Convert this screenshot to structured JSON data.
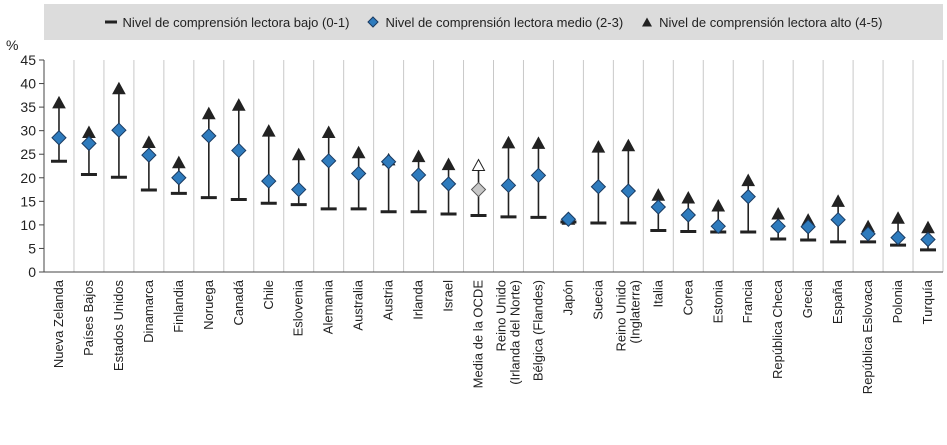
{
  "chart_data": {
    "type": "scatter",
    "y_unit": "%",
    "ylim": [
      0,
      45
    ],
    "yticks": [
      0,
      5,
      10,
      15,
      20,
      25,
      30,
      35,
      40,
      45
    ],
    "grid": "vertical",
    "legend_position": "top",
    "categories": [
      "Nueva Zelanda",
      "Países Bajos",
      "Estados Unidos",
      "Dinamarca",
      "Finlandia",
      "Noruega",
      "Canadá",
      "Chile",
      "Eslovenia",
      "Alemania",
      "Australia",
      "Austria",
      "Irlanda",
      "Israel",
      "Media de la OCDE",
      "Reino Unido\n(Irlanda del Norte)",
      "Bélgica (Flandes)",
      "Japón",
      "Suecia",
      "Reino Unido\n(Inglaterra)",
      "Italia",
      "Corea",
      "Estonia",
      "Francia",
      "República Checa",
      "Grecia",
      "España",
      "República Eslovaca",
      "Polonia",
      "Turquía"
    ],
    "highlight_category": "Media de la OCDE",
    "series": [
      {
        "name": "Nivel de comprensión lectora bajo (0-1)",
        "marker": "dash",
        "values": [
          23.5,
          20.7,
          20.1,
          17.4,
          16.7,
          15.8,
          15.4,
          14.6,
          14.3,
          13.4,
          13.4,
          12.8,
          12.8,
          12.3,
          12.0,
          11.7,
          11.6,
          10.6,
          10.4,
          10.4,
          8.8,
          8.6,
          8.5,
          8.5,
          7.0,
          6.8,
          6.4,
          6.4,
          5.7,
          4.7
        ]
      },
      {
        "name": "Nivel de comprensión lectora medio (2-3)",
        "marker": "diamond",
        "values": [
          28.5,
          27.3,
          30.1,
          24.8,
          20.0,
          28.9,
          25.8,
          19.3,
          17.5,
          23.6,
          20.9,
          23.4,
          20.6,
          18.7,
          17.5,
          18.4,
          20.5,
          11.2,
          18.1,
          17.2,
          13.8,
          12.1,
          9.7,
          16.0,
          9.7,
          9.6,
          11.1,
          8.1,
          7.3,
          6.9
        ]
      },
      {
        "name": "Nivel de comprensión lectora alto (4-5)",
        "marker": "triangle",
        "values": [
          35.9,
          29.6,
          38.9,
          27.5,
          23.2,
          33.6,
          35.4,
          29.9,
          24.9,
          29.6,
          25.3,
          23.8,
          24.5,
          22.8,
          22.6,
          27.4,
          27.3,
          11.2,
          26.5,
          26.8,
          16.3,
          15.7,
          14.0,
          19.4,
          12.3,
          11.0,
          15.0,
          9.6,
          11.4,
          9.4
        ]
      }
    ]
  },
  "colors": {
    "diamond_fill": "#2e7bbd",
    "diamond_stroke": "#1a3a60",
    "marker_dark": "#222222",
    "highlight_fill": "#c7c7c7",
    "legend_bg": "#dcdcdc",
    "grid": "#c8c8c8"
  }
}
